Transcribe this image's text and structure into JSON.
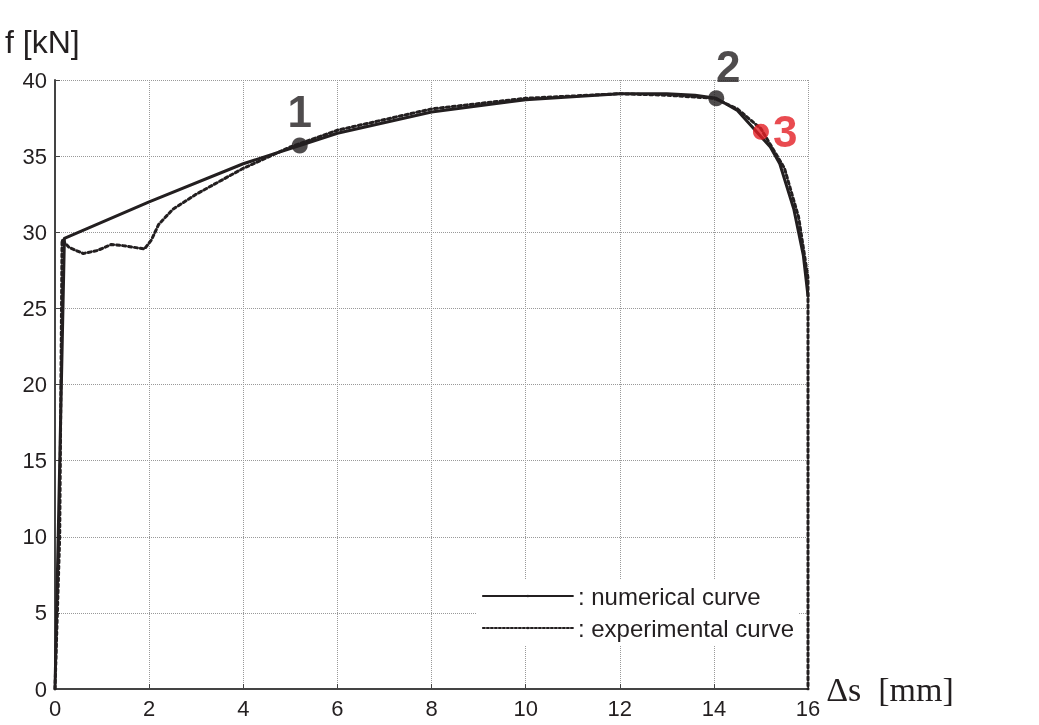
{
  "chart_data": {
    "type": "line",
    "xlabel": "Δs  [mm]",
    "ylabel": "f [kN]",
    "xlim": [
      0,
      16
    ],
    "xticks": [
      0,
      2,
      4,
      6,
      8,
      10,
      12,
      14,
      16
    ],
    "ylim": [
      0,
      40
    ],
    "yticks": [
      0,
      5,
      10,
      15,
      20,
      25,
      30,
      35,
      40
    ],
    "grid": true,
    "legend": "bottom right",
    "marker": "none",
    "series": [
      {
        "name": ": numerical curve",
        "color": "#231f20",
        "line_style": "solid",
        "x": [
          0,
          0.2,
          2,
          4,
          5.2,
          6,
          8,
          10,
          12,
          13,
          13.6,
          14.05,
          14.5,
          15.2,
          15.4,
          15.7,
          15.9,
          16.0
        ],
        "values": [
          0,
          29.6,
          32,
          34.5,
          35.7,
          36.5,
          37.9,
          38.7,
          39.1,
          39.1,
          39.0,
          38.8,
          38.0,
          35.6,
          34.5,
          31.5,
          28.5,
          25.8
        ]
      },
      {
        "name": ": experimental curve",
        "color": "#231f20",
        "line_style": "dotted",
        "x": [
          0,
          0.1,
          0.15,
          0.3,
          0.6,
          0.9,
          1.2,
          1.5,
          1.9,
          2.05,
          2.2,
          2.5,
          3,
          4,
          5,
          6,
          8,
          10,
          12,
          13,
          14,
          14.5,
          15,
          15.5,
          15.8,
          16,
          16,
          16
        ],
        "values": [
          0,
          10,
          29.5,
          29.0,
          28.6,
          28.8,
          29.2,
          29.1,
          28.9,
          29.5,
          30.5,
          31.5,
          32.5,
          34.2,
          35.6,
          36.7,
          38.1,
          38.8,
          39.1,
          39.0,
          38.8,
          38.1,
          36.8,
          34.2,
          31,
          27,
          18,
          0
        ]
      },
      {
        "type": "scatter",
        "marker": "circle",
        "x": [
          5.2,
          14.05,
          15.0
        ],
        "values": [
          35.7,
          38.8,
          36.6
        ],
        "colors": [
          "#231f20",
          "#231f20",
          "#e31e24"
        ]
      }
    ],
    "annotations": [
      {
        "text": "1",
        "x": 5.2,
        "y": 35.7
      },
      {
        "text": "2",
        "x": 14.05,
        "y": 38.8
      },
      {
        "text": "3",
        "x": 15.0,
        "y": 36.6
      }
    ]
  }
}
